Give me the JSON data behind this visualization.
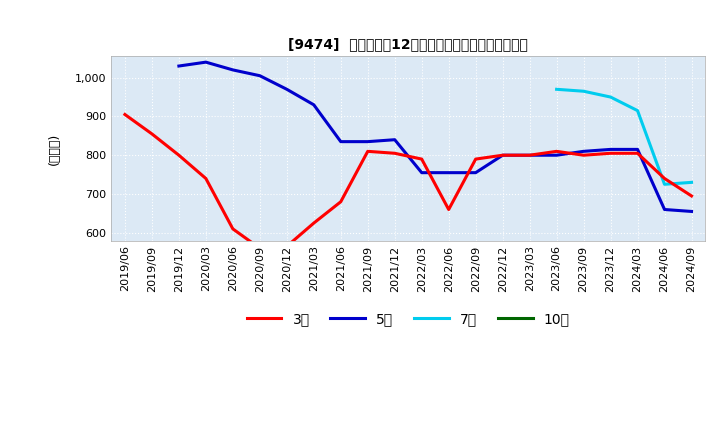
{
  "title": "[9474]  当期純利益12か月移動合計の標準偏差の推移",
  "ylabel": "(百万円)",
  "ylim": [
    580,
    1055
  ],
  "yticks": [
    600,
    700,
    800,
    900,
    1000
  ],
  "background_color": "#dce9f5",
  "grid_color": "#ffffff",
  "line_3y_color": "#ff0000",
  "line_5y_color": "#0000cc",
  "line_7y_color": "#00ccee",
  "line_10y_color": "#006600",
  "legend_labels": [
    "3年",
    "5年",
    "7年",
    "10年"
  ],
  "x_labels": [
    "2019/06",
    "2019/09",
    "2019/12",
    "2020/03",
    "2020/06",
    "2020/09",
    "2020/12",
    "2021/03",
    "2021/06",
    "2021/09",
    "2021/12",
    "2022/03",
    "2022/06",
    "2022/09",
    "2022/12",
    "2023/03",
    "2023/06",
    "2023/09",
    "2023/12",
    "2024/03",
    "2024/06",
    "2024/09"
  ],
  "data_3y": [
    905,
    855,
    800,
    740,
    610,
    560,
    565,
    625,
    680,
    810,
    805,
    790,
    660,
    790,
    800,
    800,
    810,
    800,
    805,
    805,
    740,
    695
  ],
  "data_5y": [
    null,
    null,
    1030,
    1040,
    1020,
    1005,
    970,
    930,
    835,
    835,
    840,
    755,
    755,
    755,
    800,
    800,
    800,
    810,
    815,
    815,
    660,
    655
  ],
  "data_7y": [
    null,
    null,
    null,
    null,
    null,
    null,
    null,
    null,
    null,
    null,
    null,
    null,
    null,
    null,
    null,
    null,
    970,
    965,
    950,
    915,
    725,
    730
  ],
  "data_10y": [
    null,
    null,
    null,
    null,
    null,
    null,
    null,
    null,
    null,
    null,
    null,
    null,
    null,
    null,
    null,
    null,
    null,
    null,
    null,
    null,
    null,
    null
  ]
}
